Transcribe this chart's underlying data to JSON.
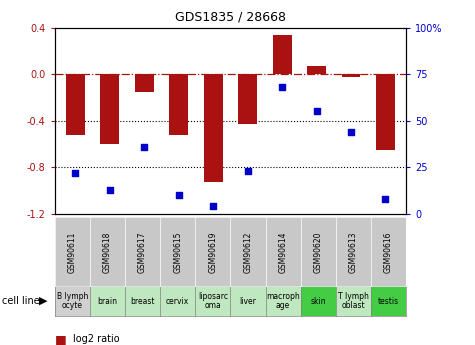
{
  "title": "GDS1835 / 28668",
  "samples": [
    "GSM90611",
    "GSM90618",
    "GSM90617",
    "GSM90615",
    "GSM90619",
    "GSM90612",
    "GSM90614",
    "GSM90620",
    "GSM90613",
    "GSM90616"
  ],
  "cell_lines": [
    "B lymph\nocyte",
    "brain",
    "breast",
    "cervix",
    "liposarc\noma",
    "liver",
    "macroph\nage",
    "skin",
    "T lymph\noblast",
    "testis"
  ],
  "log2_ratio": [
    -0.52,
    -0.6,
    -0.15,
    -0.52,
    -0.93,
    -0.43,
    0.34,
    0.07,
    -0.02,
    -0.65
  ],
  "percentile_rank": [
    22,
    13,
    36,
    10,
    4,
    23,
    68,
    55,
    44,
    8
  ],
  "bar_color": "#aa1111",
  "dot_color": "#0000cc",
  "ylim_left": [
    -1.2,
    0.4
  ],
  "ylim_right": [
    0,
    100
  ],
  "yticks_left": [
    0.4,
    0.0,
    -0.4,
    -0.8,
    -1.2
  ],
  "yticks_right": [
    100,
    75,
    50,
    25,
    0
  ],
  "dotted_lines": [
    -0.4,
    -0.8
  ],
  "cell_line_colors": [
    "#d0d0d0",
    "#c0e8c0",
    "#c0e8c0",
    "#c0e8c0",
    "#c0e8c0",
    "#c0e8c0",
    "#c0e8c0",
    "#44cc44",
    "#c0e8c0",
    "#44cc44"
  ],
  "gsm_bg": "#c8c8c8"
}
